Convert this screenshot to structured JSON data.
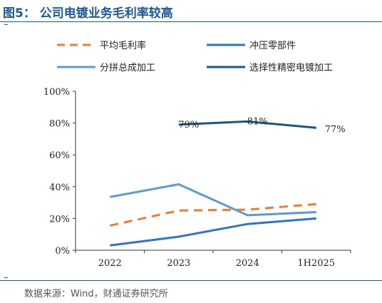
{
  "figure": {
    "title": "图5： 公司电镀业务毛利率较高",
    "source": "数据来源：Wind，财通证券研究所"
  },
  "colors": {
    "accent": "#1a5a96",
    "orange": "#ed7d31",
    "blue": "#2e75c8",
    "light_blue": "#5b9bd5",
    "dark_blue": "#1f5583"
  },
  "chart_data": {
    "type": "line",
    "categories": [
      "2022",
      "2023",
      "2024",
      "1H2025"
    ],
    "ylim": [
      0,
      100
    ],
    "yticks": [
      "0%",
      "20%",
      "40%",
      "60%",
      "80%",
      "100%"
    ],
    "grid": false,
    "legend_position": "top",
    "series": [
      {
        "name": "平均毛利率",
        "color": "#ed7d31",
        "dash": true,
        "values": [
          15.5,
          25,
          25.5,
          29
        ]
      },
      {
        "name": "冲压零部件",
        "color": "#2e75c8",
        "dash": false,
        "values": [
          3,
          8.5,
          16.5,
          20
        ]
      },
      {
        "name": "分拼总成加工",
        "color": "#5b9bd5",
        "dash": false,
        "values": [
          33.5,
          41.5,
          22,
          24
        ]
      },
      {
        "name": "选择性精密电镀加工",
        "color": "#1f5583",
        "dash": false,
        "values": [
          null,
          79,
          81,
          77
        ]
      }
    ],
    "data_labels": [
      {
        "series": 3,
        "index": 1,
        "text": "79%"
      },
      {
        "series": 3,
        "index": 2,
        "text": "81%"
      },
      {
        "series": 3,
        "index": 3,
        "text": "77%"
      }
    ]
  }
}
